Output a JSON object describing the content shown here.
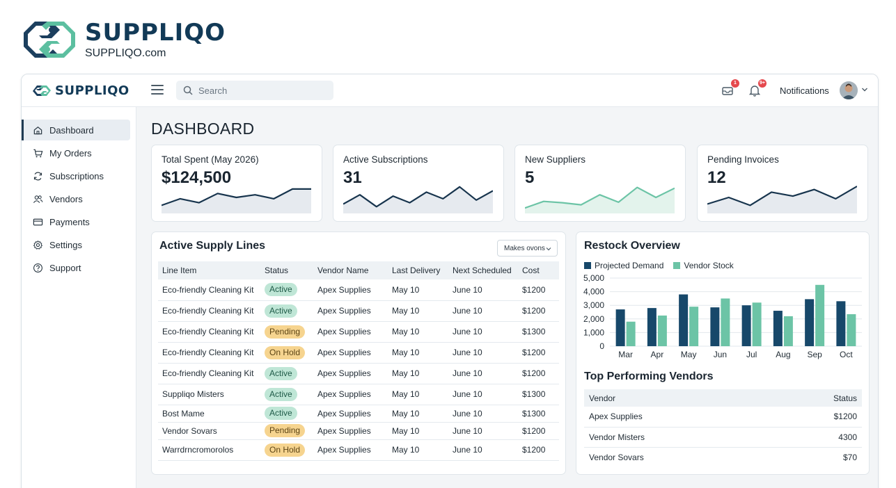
{
  "brand": {
    "name": "SUPPLIQO",
    "url": "SUPPLIQO.com"
  },
  "topbar": {
    "logo_text": "SUPPLIQO",
    "search_placeholder": "Search",
    "inbox_badge": "1",
    "bell_badge": "9+",
    "notifications_label": "Notifications"
  },
  "sidebar": {
    "items": [
      {
        "label": "Dashboard",
        "icon": "home-icon",
        "active": true
      },
      {
        "label": "My Orders",
        "icon": "cart-icon"
      },
      {
        "label": "Subscriptions",
        "icon": "refresh-icon"
      },
      {
        "label": "Vendors",
        "icon": "users-icon"
      },
      {
        "label": "Payments",
        "icon": "credit-card-icon"
      },
      {
        "label": "Settings",
        "icon": "gear-icon"
      },
      {
        "label": "Support",
        "icon": "help-icon"
      }
    ]
  },
  "page": {
    "title": "DASHBOARD"
  },
  "stats": [
    {
      "label": "Total Spent (May 2026)",
      "value": "$124,500",
      "trend": [
        0.2,
        0.45,
        0.3,
        0.65,
        0.5,
        0.6,
        0.45,
        0.82,
        0.82
      ],
      "color": "#17344d",
      "filled": true
    },
    {
      "label": "Active Subscriptions",
      "value": "31",
      "trend": [
        0.25,
        0.6,
        0.15,
        0.55,
        0.3,
        0.7,
        0.45,
        0.9,
        0.4,
        0.75
      ],
      "color": "#17344d",
      "filled": true
    },
    {
      "label": "New Suppliers",
      "value": "5",
      "trend": [
        0.1,
        0.35,
        0.3,
        0.22,
        0.6,
        0.32,
        0.88,
        0.5,
        0.85
      ],
      "color": "#6cc4a6",
      "filled": true
    },
    {
      "label": "Pending Invoices",
      "value": "12",
      "trend": [
        0.25,
        0.5,
        0.2,
        0.7,
        0.55,
        0.8,
        0.45,
        0.92
      ],
      "color": "#17344d",
      "filled": true
    }
  ],
  "supply": {
    "title": "Active Supply Lines",
    "dropdown": "Makes ovons",
    "headers": [
      "Line Item",
      "Status",
      "Vendor Name",
      "Last Delivery",
      "Next Scheduled",
      "Cost"
    ],
    "rows": [
      {
        "item": "Eco-friendly Cleaning Kit",
        "status": "Active",
        "kind": "active",
        "vendor": "Apex Supplies",
        "last": "May 10",
        "next": "June 10",
        "cost": "$1200"
      },
      {
        "item": "Eco-friendly Cleaning Kit",
        "status": "Active",
        "kind": "active",
        "vendor": "Apex Supplies",
        "last": "May 10",
        "next": "June 10",
        "cost": "$1200"
      },
      {
        "item": "Eco-friendly Cleaning Kit",
        "status": "Pending",
        "kind": "pending",
        "vendor": "Apex Supplies",
        "last": "May 10",
        "next": "June 10",
        "cost": "$1300"
      },
      {
        "item": "Eco-friendly Cleaning Kit",
        "status": "On Hold",
        "kind": "onhold",
        "vendor": "Apex Supplies",
        "last": "May 10",
        "next": "June 10",
        "cost": "$1200"
      },
      {
        "item": "Eco-friendly Cleaning Kit",
        "status": "Active",
        "kind": "active",
        "vendor": "Apex Supplies",
        "last": "May 10",
        "next": "June 10",
        "cost": "$1200"
      },
      {
        "item": "Suppliqo Misters",
        "status": "Active",
        "kind": "active",
        "vendor": "Apex Supplies",
        "last": "May 10",
        "next": "June 10",
        "cost": "$1300"
      },
      {
        "item": "Bost Mame",
        "status": "Active",
        "kind": "active",
        "vendor": "Apex Supplies",
        "last": "May 10",
        "next": "June 10",
        "cost": "$1300"
      },
      {
        "item": "Vendor Sovars",
        "status": "Pending",
        "kind": "pending",
        "vendor": "Apex Supplies",
        "last": "May 10",
        "next": "June 10",
        "cost": "$1200"
      },
      {
        "item": "Warrdrncromorolos",
        "status": "On Hold",
        "kind": "onhold",
        "vendor": "Apex Supplies",
        "last": "May 10",
        "next": "June 10",
        "cost": "$1200"
      }
    ]
  },
  "restock": {
    "title": "Restock Overview",
    "vendors_title": "Top Performing Vendors",
    "vendor_headers": [
      "Vendor",
      "Status"
    ],
    "vendors": [
      {
        "name": "Apex Supplies",
        "value": "$1200"
      },
      {
        "name": "Vendor Misters",
        "value": "4300"
      },
      {
        "name": "Vendor Sovars",
        "value": "$70"
      }
    ]
  },
  "chart_data": {
    "type": "bar",
    "title": "Restock Overview",
    "categories": [
      "Mar",
      "Apr",
      "May",
      "Jun",
      "Jul",
      "Aug",
      "Sep",
      "Oct"
    ],
    "series": [
      {
        "name": "Projected Demand",
        "values": [
          2700,
          2800,
          3800,
          2850,
          3000,
          2600,
          3450,
          3300
        ],
        "color": "#17486a"
      },
      {
        "name": "Vendor Stock",
        "values": [
          1800,
          2250,
          2900,
          3500,
          3200,
          2200,
          4500,
          2350
        ],
        "color": "#6cc4a6"
      }
    ],
    "yticks": [
      "5,000",
      "4,000",
      "3,000",
      "2,000",
      "1,000",
      "0"
    ],
    "ylim": [
      0,
      5000
    ],
    "grid": true,
    "legend_position": "top-left"
  }
}
